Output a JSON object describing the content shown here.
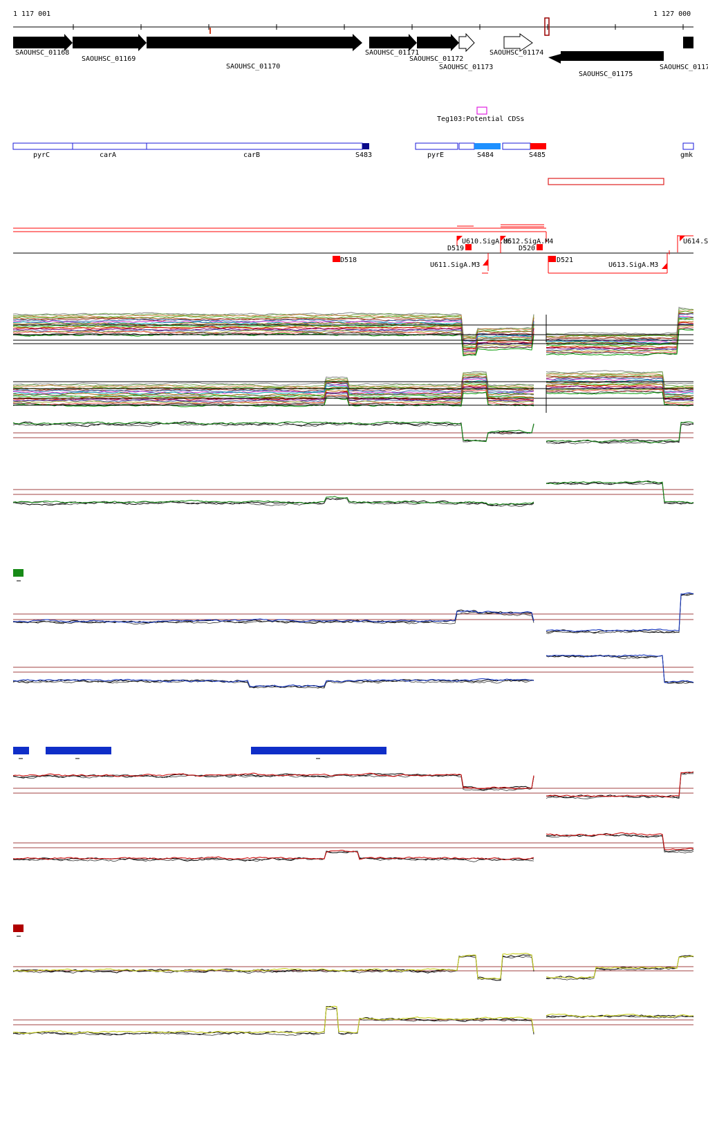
{
  "coords": {
    "start": "1 117 001",
    "end": "1 127 000"
  },
  "colors": {
    "gene_fill": "#000000",
    "operon_outline": "#1a1ad8",
    "operon_fill": "#0a0a8a",
    "sig_light": "#1e90ff",
    "sig_red": "#ff0000",
    "teg_box": "#e020e0",
    "marker": "#990000",
    "ref_line": "#a04040",
    "green_track": "#1a8a1a",
    "blue_track": "#1a3ac0",
    "red_track": "#cc1010",
    "yellow_track": "#c8d020",
    "legend_green": "#178a17",
    "legend_blue": "#0f2ec8",
    "legend_red": "#b00000"
  },
  "genes": [
    {
      "name": "SAOUHSC_01168",
      "strand": "+",
      "filled": true
    },
    {
      "name": "SAOUHSC_01169",
      "strand": "+",
      "filled": true
    },
    {
      "name": "SAOUHSC_01170",
      "strand": "+",
      "filled": true
    },
    {
      "name": "SAOUHSC_01171",
      "strand": "+",
      "filled": true
    },
    {
      "name": "SAOUHSC_01172",
      "strand": "+",
      "filled": true
    },
    {
      "name": "SAOUHSC_01173",
      "strand": "+",
      "filled": false
    },
    {
      "name": "SAOUHSC_01174",
      "strand": "+",
      "filled": false
    },
    {
      "name": "SAOUHSC_01175",
      "strand": "-",
      "filled": true
    },
    {
      "name": "SAOUHSC_0117",
      "strand": "+",
      "filled": true
    }
  ],
  "teg_label": "Teg103:Potential CDSs",
  "operons": [
    "pyrC",
    "carA",
    "carB",
    "S483",
    "pyrE",
    "S484",
    "S485",
    "gmk"
  ],
  "promoters": [
    "U610.SigA.M5",
    "U612.SigA.M4",
    "U614.S",
    "D519",
    "D520",
    "D518",
    "D521",
    "U611.SigA.M3",
    "U613.SigA.M3"
  ],
  "tracks": [
    {
      "type": "multi"
    },
    {
      "type": "multi"
    },
    {
      "type": "pair",
      "color": "green_track"
    },
    {
      "type": "pair",
      "color": "green_track"
    },
    {
      "type": "pair",
      "color": "blue_track"
    },
    {
      "type": "pair",
      "color": "blue_track"
    },
    {
      "type": "pair",
      "color": "red_track"
    },
    {
      "type": "pair",
      "color": "red_track"
    },
    {
      "type": "pair",
      "color": "yellow_track"
    },
    {
      "type": "pair",
      "color": "yellow_track"
    }
  ]
}
